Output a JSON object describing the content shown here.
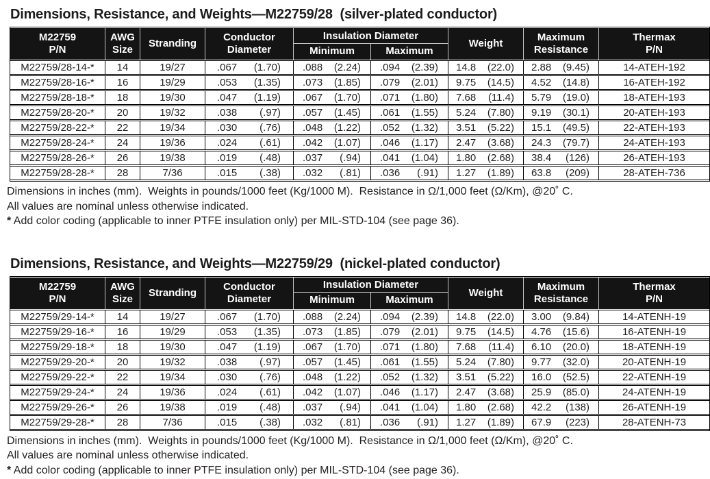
{
  "palette": {
    "ink": "#231f20",
    "header_bg": "#141414",
    "header_fg": "#ffffff",
    "header_divider": "#c6c6c6",
    "row_border": "#000000"
  },
  "header_labels": {
    "pn_l1": "M22759",
    "pn_l2": "P/N",
    "awg_l1": "AWG",
    "awg_l2": "Size",
    "stranding": "Stranding",
    "cond_l1": "Conductor",
    "cond_l2": "Diameter",
    "insul_group": "Insulation Diameter",
    "insul_min": "Minimum",
    "insul_max": "Maximum",
    "weight": "Weight",
    "res_l1": "Maximum",
    "res_l2": "Resistance",
    "thermax_l1": "Thermax",
    "thermax_l2": "P/N"
  },
  "footnotes": {
    "units": "Dimensions in inches (mm).  Weights in pounds/1000 feet (Kg/1000 M).  Resistance in Ω/1,000 feet (Ω/Km), @20˚ C.",
    "nominal": "All values are nominal unless otherwise indicated.",
    "star": "*",
    "color_coding": " Add color coding (applicable to inner PTFE insulation only) per MIL-STD-104 (see page 36)."
  },
  "tables": [
    {
      "title": "Dimensions, Resistance, and Weights—M22759/28  (silver-plated conductor)",
      "rows": [
        {
          "pn": "M22759/28-14-*",
          "awg": "14",
          "strand": "19/27",
          "cond_in": ".067",
          "cond_mm": "(1.70)",
          "min_in": ".088",
          "min_mm": "(2.24)",
          "max_in": ".094",
          "max_mm": "(2.39)",
          "wt_lb": "14.8",
          "wt_kg": "(22.0)",
          "res": "2.88",
          "res_km": "(9.45)",
          "thermax": "14-ATEH-192"
        },
        {
          "pn": "M22759/28-16-*",
          "awg": "16",
          "strand": "19/29",
          "cond_in": ".053",
          "cond_mm": "(1.35)",
          "min_in": ".073",
          "min_mm": "(1.85)",
          "max_in": ".079",
          "max_mm": "(2.01)",
          "wt_lb": "9.75",
          "wt_kg": "(14.5)",
          "res": "4.52",
          "res_km": "(14.8)",
          "thermax": "16-ATEH-192"
        },
        {
          "pn": "M22759/28-18-*",
          "awg": "18",
          "strand": "19/30",
          "cond_in": ".047",
          "cond_mm": "(1.19)",
          "min_in": ".067",
          "min_mm": "(1.70)",
          "max_in": ".071",
          "max_mm": "(1.80)",
          "wt_lb": "7.68",
          "wt_kg": "(11.4)",
          "res": "5.79",
          "res_km": "(19.0)",
          "thermax": "18-ATEH-193"
        },
        {
          "pn": "M22759/28-20-*",
          "awg": "20",
          "strand": "19/32",
          "cond_in": ".038",
          "cond_mm": "(.97)",
          "min_in": ".057",
          "min_mm": "(1.45)",
          "max_in": ".061",
          "max_mm": "(1.55)",
          "wt_lb": "5.24",
          "wt_kg": "(7.80)",
          "res": "9.19",
          "res_km": "(30.1)",
          "thermax": "20-ATEH-193"
        },
        {
          "pn": "M22759/28-22-*",
          "awg": "22",
          "strand": "19/34",
          "cond_in": ".030",
          "cond_mm": "(.76)",
          "min_in": ".048",
          "min_mm": "(1.22)",
          "max_in": ".052",
          "max_mm": "(1.32)",
          "wt_lb": "3.51",
          "wt_kg": "(5.22)",
          "res": "15.1",
          "res_km": "(49.5)",
          "thermax": "22-ATEH-193"
        },
        {
          "pn": "M22759/28-24-*",
          "awg": "24",
          "strand": "19/36",
          "cond_in": ".024",
          "cond_mm": "(.61)",
          "min_in": ".042",
          "min_mm": "(1.07)",
          "max_in": ".046",
          "max_mm": "(1.17)",
          "wt_lb": "2.47",
          "wt_kg": "(3.68)",
          "res": "24.3",
          "res_km": "(79.7)",
          "thermax": "24-ATEH-193"
        },
        {
          "pn": "M22759/28-26-*",
          "awg": "26",
          "strand": "19/38",
          "cond_in": ".019",
          "cond_mm": "(.48)",
          "min_in": ".037",
          "min_mm": "(.94)",
          "max_in": ".041",
          "max_mm": "(1.04)",
          "wt_lb": "1.80",
          "wt_kg": "(2.68)",
          "res": "38.4",
          "res_km": "(126)",
          "thermax": "26-ATEH-193"
        },
        {
          "pn": "M22759/28-28-*",
          "awg": "28",
          "strand": "7/36",
          "cond_in": ".015",
          "cond_mm": "(.38)",
          "min_in": ".032",
          "min_mm": "(.81)",
          "max_in": ".036",
          "max_mm": "(.91)",
          "wt_lb": "1.27",
          "wt_kg": "(1.89)",
          "res": "63.8",
          "res_km": "(209)",
          "thermax": "28-ATEH-736"
        }
      ]
    },
    {
      "title": "Dimensions, Resistance, and Weights—M22759/29  (nickel-plated conductor)",
      "rows": [
        {
          "pn": "M22759/29-14-*",
          "awg": "14",
          "strand": "19/27",
          "cond_in": ".067",
          "cond_mm": "(1.70)",
          "min_in": ".088",
          "min_mm": "(2.24)",
          "max_in": ".094",
          "max_mm": "(2.39)",
          "wt_lb": "14.8",
          "wt_kg": "(22.0)",
          "res": "3.00",
          "res_km": "(9.84)",
          "thermax": "14-ATENH-19"
        },
        {
          "pn": "M22759/29-16-*",
          "awg": "16",
          "strand": "19/29",
          "cond_in": ".053",
          "cond_mm": "(1.35)",
          "min_in": ".073",
          "min_mm": "(1.85)",
          "max_in": ".079",
          "max_mm": "(2.01)",
          "wt_lb": "9.75",
          "wt_kg": "(14.5)",
          "res": "4.76",
          "res_km": "(15.6)",
          "thermax": "16-ATENH-19"
        },
        {
          "pn": "M22759/29-18-*",
          "awg": "18",
          "strand": "19/30",
          "cond_in": ".047",
          "cond_mm": "(1.19)",
          "min_in": ".067",
          "min_mm": "(1.70)",
          "max_in": ".071",
          "max_mm": "(1.80)",
          "wt_lb": "7.68",
          "wt_kg": "(11.4)",
          "res": "6.10",
          "res_km": "(20.0)",
          "thermax": "18-ATENH-19"
        },
        {
          "pn": "M22759/29-20-*",
          "awg": "20",
          "strand": "19/32",
          "cond_in": ".038",
          "cond_mm": "(.97)",
          "min_in": ".057",
          "min_mm": "(1.45)",
          "max_in": ".061",
          "max_mm": "(1.55)",
          "wt_lb": "5.24",
          "wt_kg": "(7.80)",
          "res": "9.77",
          "res_km": "(32.0)",
          "thermax": "20-ATENH-19"
        },
        {
          "pn": "M22759/29-22-*",
          "awg": "22",
          "strand": "19/34",
          "cond_in": ".030",
          "cond_mm": "(.76)",
          "min_in": ".048",
          "min_mm": "(1.22)",
          "max_in": ".052",
          "max_mm": "(1.32)",
          "wt_lb": "3.51",
          "wt_kg": "(5.22)",
          "res": "16.0",
          "res_km": "(52.5)",
          "thermax": "22-ATENH-19"
        },
        {
          "pn": "M22759/29-24-*",
          "awg": "24",
          "strand": "19/36",
          "cond_in": ".024",
          "cond_mm": "(.61)",
          "min_in": ".042",
          "min_mm": "(1.07)",
          "max_in": ".046",
          "max_mm": "(1.17)",
          "wt_lb": "2.47",
          "wt_kg": "(3.68)",
          "res": "25.9",
          "res_km": "(85.0)",
          "thermax": "24-ATENH-19"
        },
        {
          "pn": "M22759/29-26-*",
          "awg": "26",
          "strand": "19/38",
          "cond_in": ".019",
          "cond_mm": "(.48)",
          "min_in": ".037",
          "min_mm": "(.94)",
          "max_in": ".041",
          "max_mm": "(1.04)",
          "wt_lb": "1.80",
          "wt_kg": "(2.68)",
          "res": "42.2",
          "res_km": "(138)",
          "thermax": "26-ATENH-19"
        },
        {
          "pn": "M22759/29-28-*",
          "awg": "28",
          "strand": "7/36",
          "cond_in": ".015",
          "cond_mm": "(.38)",
          "min_in": ".032",
          "min_mm": "(.81)",
          "max_in": ".036",
          "max_mm": "(.91)",
          "wt_lb": "1.27",
          "wt_kg": "(1.89)",
          "res": "67.9",
          "res_km": "(223)",
          "thermax": "28-ATENH-73"
        }
      ]
    }
  ]
}
